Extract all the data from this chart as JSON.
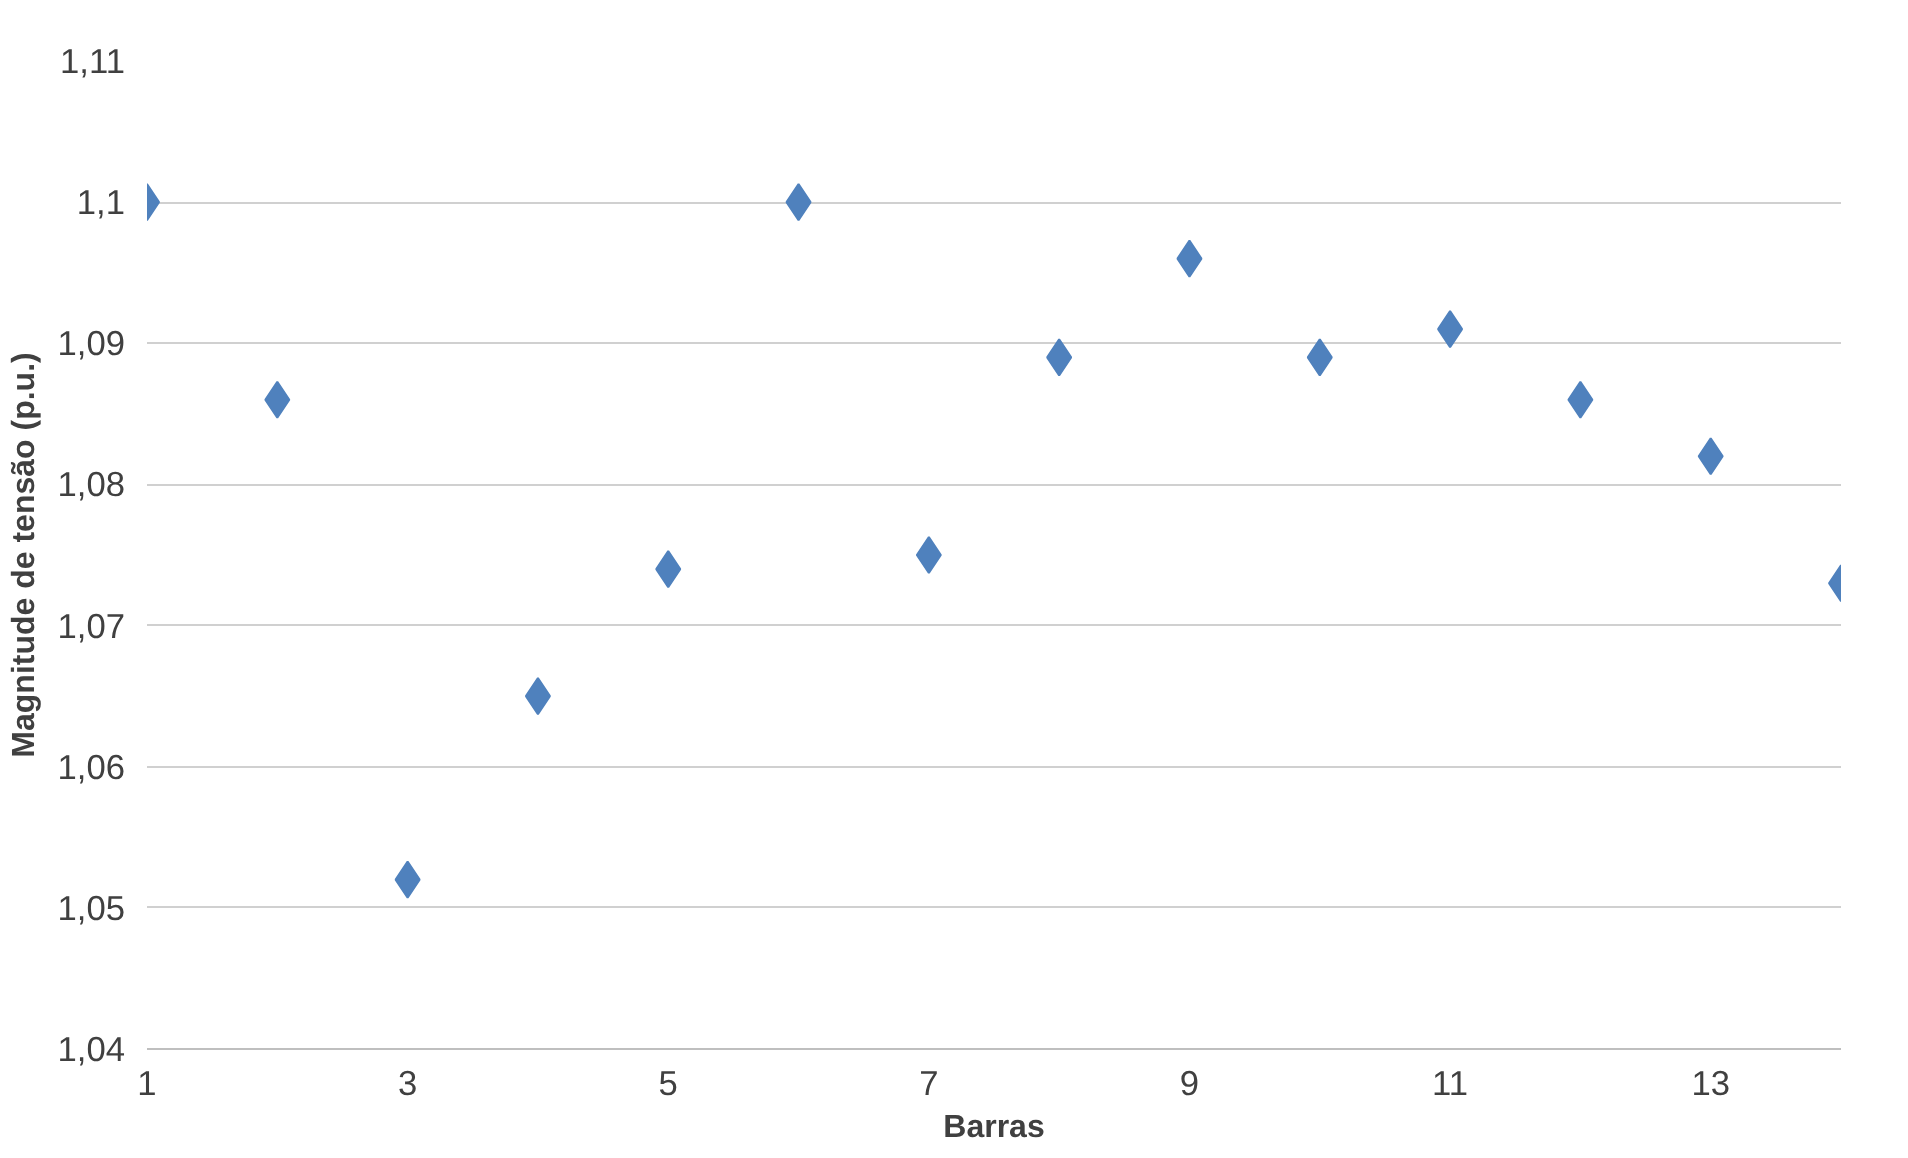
{
  "chart_data": {
    "type": "scatter",
    "xlabel": "Barras",
    "ylabel": "Magnitude de tensão (p.u.)",
    "x": [
      1,
      2,
      3,
      4,
      5,
      6,
      7,
      8,
      9,
      10,
      11,
      12,
      13,
      14
    ],
    "series": [
      {
        "color": "#4f81bd",
        "values": [
          1.1,
          1.086,
          1.052,
          1.065,
          1.074,
          1.1,
          1.075,
          1.089,
          1.096,
          1.089,
          1.091,
          1.086,
          1.082,
          1.073
        ]
      }
    ],
    "xlim": [
      1,
      14
    ],
    "xticks": [
      1,
      3,
      5,
      7,
      9,
      11,
      13
    ],
    "ylim": [
      1.04,
      1.11
    ],
    "yticks": [
      {
        "value": 1.04,
        "label": "1,04"
      },
      {
        "value": 1.05,
        "label": "1,05"
      },
      {
        "value": 1.06,
        "label": "1,06"
      },
      {
        "value": 1.07,
        "label": "1,07"
      },
      {
        "value": 1.08,
        "label": "1,08"
      },
      {
        "value": 1.09,
        "label": "1,09"
      },
      {
        "value": 1.1,
        "label": "1,1"
      },
      {
        "value": 1.11,
        "label": "1,11"
      }
    ],
    "grid": "y",
    "marker": "diamond"
  }
}
